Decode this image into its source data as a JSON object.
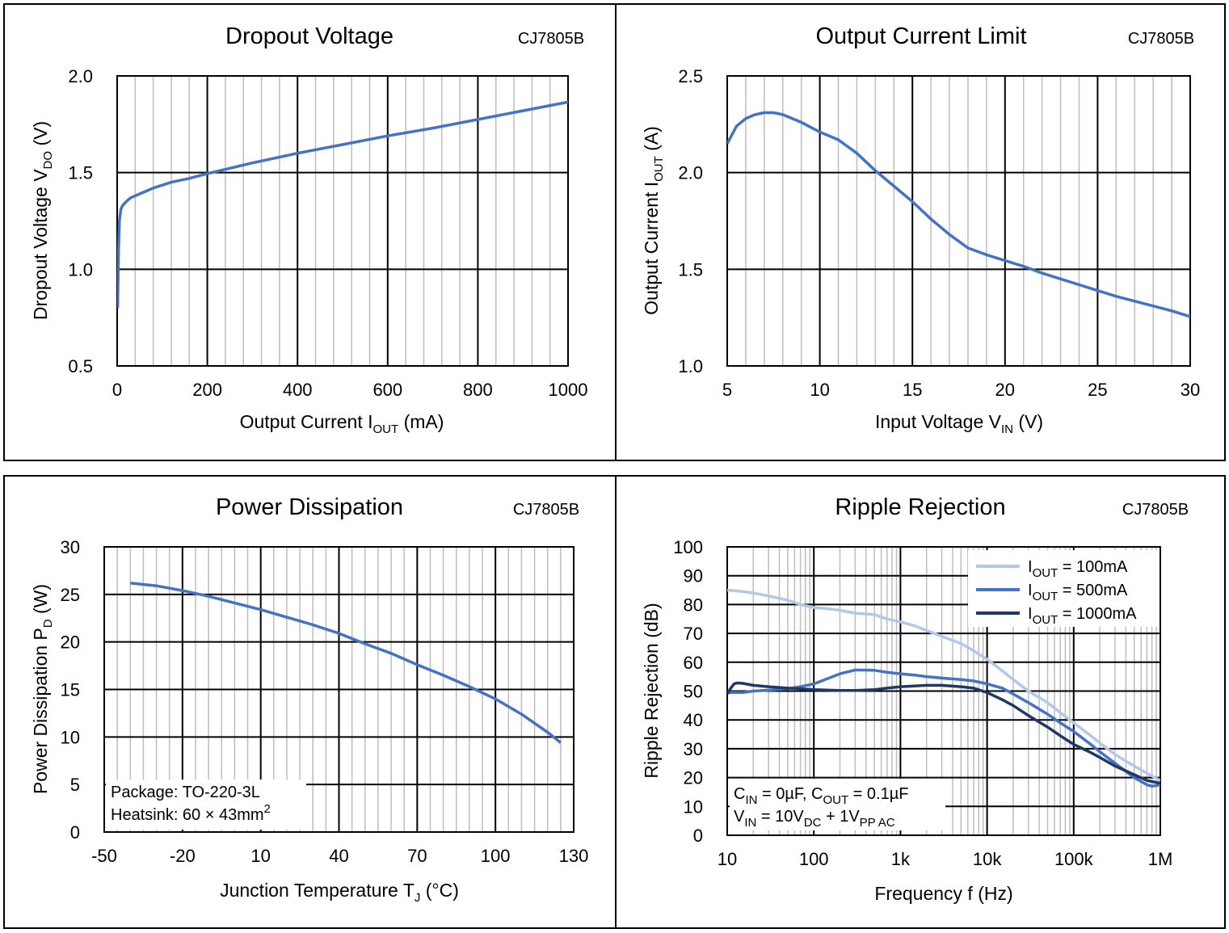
{
  "colors": {
    "series_main": "#4472c4",
    "series_light": "#b4c7e7",
    "series_dark": "#1f3864",
    "grid_major": "#000000",
    "grid_minor": "#bdbdbd"
  },
  "chart_data": [
    {
      "type": "line",
      "title": "Dropout Voltage",
      "part": "CJ7805B",
      "xlabel": {
        "main": "Output Current I",
        "sub": "OUT",
        "tail": " (mA)"
      },
      "ylabel": {
        "main": "Dropout Voltage V",
        "sub": "DO",
        "tail": " (V)"
      },
      "xlim": [
        0,
        1000
      ],
      "ylim": [
        0.5,
        2.0
      ],
      "xticks": [
        0,
        200,
        400,
        600,
        800,
        1000
      ],
      "yticks": [
        0.5,
        1.0,
        1.5,
        2.0
      ],
      "ytick_labels": [
        "0.5",
        "1.0",
        "1.5",
        "2.0"
      ],
      "xticks_minor": [
        40,
        80,
        120,
        160,
        240,
        280,
        320,
        360,
        440,
        480,
        520,
        560,
        640,
        680,
        720,
        760,
        840,
        880,
        920,
        960
      ],
      "grid": true,
      "series": [
        {
          "color": "#4472c4",
          "x": [
            1,
            3,
            5,
            8,
            12,
            20,
            30,
            50,
            80,
            120,
            160,
            200,
            300,
            400,
            500,
            600,
            700,
            800,
            900,
            1000
          ],
          "y": [
            0.8,
            1.1,
            1.25,
            1.31,
            1.33,
            1.35,
            1.37,
            1.39,
            1.42,
            1.45,
            1.47,
            1.495,
            1.55,
            1.6,
            1.645,
            1.69,
            1.73,
            1.775,
            1.82,
            1.865
          ]
        }
      ]
    },
    {
      "type": "line",
      "title": "Output Current Limit",
      "part": "CJ7805B",
      "xlabel": {
        "main": "Input Voltage V",
        "sub": "IN",
        "tail": " (V)"
      },
      "ylabel": {
        "main": "Output Current I",
        "sub": "OUT",
        "tail": " (A)"
      },
      "xlim": [
        5,
        30
      ],
      "ylim": [
        1.0,
        2.5
      ],
      "xticks": [
        5,
        10,
        15,
        20,
        25,
        30
      ],
      "yticks": [
        1.0,
        1.5,
        2.0,
        2.5
      ],
      "ytick_labels": [
        "1.0",
        "1.5",
        "2.0",
        "2.5"
      ],
      "xticks_minor": [
        6,
        7,
        8,
        9,
        11,
        12,
        13,
        14,
        16,
        17,
        18,
        19,
        21,
        22,
        23,
        24,
        26,
        27,
        28,
        29
      ],
      "grid": true,
      "series": [
        {
          "color": "#4472c4",
          "x": [
            5,
            5.5,
            6,
            6.5,
            7,
            7.5,
            8,
            9,
            10,
            11,
            12,
            13,
            14,
            15,
            16,
            17,
            18,
            19,
            20,
            21,
            22,
            23,
            24,
            25,
            26,
            27,
            28,
            29,
            30
          ],
          "y": [
            2.15,
            2.24,
            2.28,
            2.3,
            2.31,
            2.31,
            2.3,
            2.26,
            2.21,
            2.17,
            2.1,
            2.01,
            1.93,
            1.85,
            1.76,
            1.68,
            1.61,
            1.575,
            1.545,
            1.515,
            1.48,
            1.45,
            1.42,
            1.39,
            1.36,
            1.335,
            1.31,
            1.285,
            1.255
          ]
        }
      ]
    },
    {
      "type": "line",
      "title": "Power Dissipation",
      "part": "CJ7805B",
      "xlabel": {
        "main": "Junction Temperature T",
        "sub": "J",
        "tail": " (°C)"
      },
      "ylabel": {
        "main": "Power Dissipation P",
        "sub": "D",
        "tail": " (W)"
      },
      "xlim": [
        -50,
        130
      ],
      "ylim": [
        0,
        30
      ],
      "xticks": [
        -50,
        -20,
        10,
        40,
        70,
        100,
        130
      ],
      "yticks": [
        0,
        5,
        10,
        15,
        20,
        25,
        30
      ],
      "ytick_labels": [
        "0",
        "5",
        "10",
        "15",
        "20",
        "25",
        "30"
      ],
      "xticks_minor": [
        -45,
        -40,
        -35,
        -30,
        -25,
        -15,
        -10,
        -5,
        0,
        5,
        15,
        20,
        25,
        30,
        35,
        45,
        50,
        55,
        60,
        65,
        75,
        80,
        85,
        90,
        95,
        105,
        110,
        115,
        120,
        125
      ],
      "grid": true,
      "annotation": [
        {
          "text": "Package: TO-220-3L"
        },
        {
          "main": "Heatsink: 60 × 43mm",
          "sup": "2"
        }
      ],
      "series": [
        {
          "color": "#4472c4",
          "x": [
            -40,
            -30,
            -20,
            -10,
            0,
            10,
            20,
            30,
            40,
            50,
            60,
            70,
            80,
            90,
            100,
            110,
            120,
            125
          ],
          "y": [
            26.2,
            25.9,
            25.4,
            24.8,
            24.1,
            23.4,
            22.6,
            21.8,
            20.9,
            19.8,
            18.8,
            17.6,
            16.5,
            15.3,
            14.0,
            12.4,
            10.5,
            9.4
          ]
        }
      ]
    },
    {
      "type": "line",
      "title": "Ripple Rejection",
      "part": "CJ7805B",
      "xlabel": {
        "main": "Frequency f (Hz)"
      },
      "ylabel": {
        "main": "Ripple Rejection (dB)"
      },
      "xscale": "log",
      "xlim": [
        10,
        1000000
      ],
      "ylim": [
        0,
        100
      ],
      "xticks": [
        10,
        100,
        1000,
        10000,
        100000,
        1000000
      ],
      "xtick_labels": [
        "10",
        "100",
        "1k",
        "10k",
        "100k",
        "1M"
      ],
      "yticks": [
        0,
        10,
        20,
        30,
        40,
        50,
        60,
        70,
        80,
        90,
        100
      ],
      "ytick_labels": [
        "0",
        "10",
        "20",
        "30",
        "40",
        "50",
        "60",
        "70",
        "80",
        "90",
        "100"
      ],
      "grid": true,
      "legend_position": "top-right",
      "annotation": [
        {
          "parts": [
            [
              "C",
              ""
            ],
            [
              "IN",
              "sub"
            ],
            [
              " = 0µF, C",
              ""
            ],
            [
              "OUT",
              "sub"
            ],
            [
              " = 0.1µF",
              ""
            ]
          ]
        },
        {
          "parts": [
            [
              "V",
              ""
            ],
            [
              "IN",
              "sub"
            ],
            [
              " = 10V",
              ""
            ],
            [
              "DC",
              "sub"
            ],
            [
              " + 1V",
              ""
            ],
            [
              "PP AC",
              "sub"
            ]
          ]
        }
      ],
      "series": [
        {
          "legend": {
            "main": "I",
            "sub": "OUT",
            "tail": " = 100mA"
          },
          "color": "#b4c7e7",
          "x": [
            10,
            15,
            20,
            30,
            50,
            70,
            100,
            150,
            200,
            300,
            500,
            700,
            1000,
            1500,
            2000,
            3000,
            5000,
            7000,
            10000,
            15000,
            20000,
            30000,
            50000,
            70000,
            100000,
            150000,
            200000,
            300000,
            500000,
            700000,
            1000000
          ],
          "y": [
            85,
            84.5,
            84,
            83,
            81.5,
            80,
            79,
            78.5,
            78,
            77,
            76.5,
            75,
            74,
            72.5,
            71,
            69,
            66.5,
            64,
            61,
            57,
            54,
            50,
            46,
            42.5,
            39,
            35,
            32,
            28,
            24,
            21.5,
            19
          ]
        },
        {
          "legend": {
            "main": "I",
            "sub": "OUT",
            "tail": " = 500mA"
          },
          "color": "#4472c4",
          "x": [
            10,
            15,
            20,
            30,
            50,
            70,
            100,
            150,
            200,
            300,
            500,
            700,
            1000,
            1500,
            2000,
            3000,
            5000,
            7000,
            10000,
            15000,
            20000,
            30000,
            50000,
            70000,
            100000,
            150000,
            200000,
            300000,
            500000,
            700000,
            800000,
            1000000
          ],
          "y": [
            49.5,
            49.5,
            50,
            50.3,
            50.8,
            51.5,
            52.5,
            54.5,
            56,
            57.3,
            57.2,
            56.5,
            56,
            55.5,
            55,
            54.5,
            54,
            53.5,
            52.5,
            51,
            49,
            46,
            42,
            39,
            36,
            32,
            29,
            25,
            20,
            17.5,
            17,
            17.5
          ]
        },
        {
          "legend": {
            "main": "I",
            "sub": "OUT",
            "tail": " = 1000mA"
          },
          "color": "#1f3864",
          "x": [
            10,
            11,
            12,
            13,
            15,
            20,
            30,
            50,
            70,
            100,
            150,
            200,
            300,
            500,
            700,
            1000,
            1500,
            2000,
            3000,
            5000,
            7000,
            10000,
            15000,
            20000,
            30000,
            50000,
            70000,
            100000,
            150000,
            200000,
            300000,
            500000,
            700000,
            1000000
          ],
          "y": [
            49,
            51,
            52.5,
            52.8,
            52.7,
            52,
            51.5,
            51,
            50.8,
            50.5,
            50.3,
            50.2,
            50.2,
            50.5,
            51,
            51.5,
            51.8,
            52,
            52,
            51.5,
            51,
            49.5,
            47,
            45,
            41.5,
            37.5,
            34.5,
            31.5,
            29,
            27,
            24,
            21,
            19,
            18
          ]
        }
      ]
    }
  ]
}
